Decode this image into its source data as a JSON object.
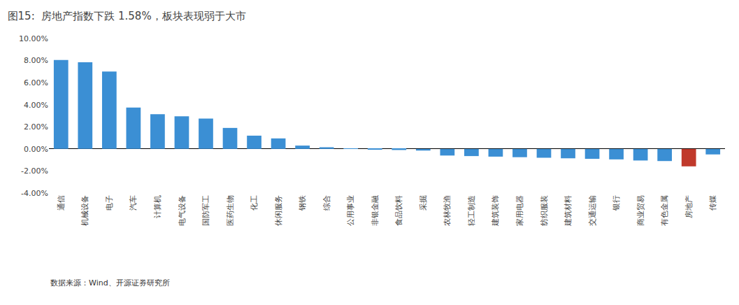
{
  "chart_data": {
    "type": "bar",
    "title": "图15:  房地产指数下跌 1.58%，板块表现弱于大市",
    "annotations": [
      "数据来源：Wind、开源证券研究所"
    ],
    "categories": [
      "通信",
      "机械设备",
      "电子",
      "汽车",
      "计算机",
      "电气设备",
      "国防军工",
      "医药生物",
      "化工",
      "休闲服务",
      "钢铁",
      "综合",
      "公用事业",
      "非银金融",
      "食品饮料",
      "采掘",
      "农林牧渔",
      "轻工制造",
      "建筑装饰",
      "家用电器",
      "纺织服装",
      "建筑材料",
      "交通运输",
      "银行",
      "商业贸易",
      "有色金属",
      "房地产",
      "传媒"
    ],
    "values": [
      8.05,
      7.85,
      7.0,
      3.75,
      3.15,
      2.95,
      2.75,
      1.9,
      1.2,
      0.95,
      0.3,
      0.15,
      0.05,
      -0.05,
      -0.1,
      -0.15,
      -0.6,
      -0.65,
      -0.7,
      -0.75,
      -0.8,
      -0.85,
      -0.9,
      -0.95,
      -1.05,
      -1.1,
      -1.58,
      -0.5
    ],
    "colors": [
      "#3B8FD4",
      "#3B8FD4",
      "#3B8FD4",
      "#3B8FD4",
      "#3B8FD4",
      "#3B8FD4",
      "#3B8FD4",
      "#3B8FD4",
      "#3B8FD4",
      "#3B8FD4",
      "#3B8FD4",
      "#3B8FD4",
      "#3B8FD4",
      "#3B8FD4",
      "#3B8FD4",
      "#3B8FD4",
      "#3B8FD4",
      "#3B8FD4",
      "#3B8FD4",
      "#3B8FD4",
      "#3B8FD4",
      "#3B8FD4",
      "#3B8FD4",
      "#3B8FD4",
      "#3B8FD4",
      "#3B8FD4",
      "#C0392B",
      "#3B8FD4"
    ],
    "ylim": [
      -4.0,
      10.0
    ],
    "yticks": [
      {
        "value": -4.0,
        "label": "-4.00%"
      },
      {
        "value": -2.0,
        "label": "-2.00%"
      },
      {
        "value": 0.0,
        "label": "0.00%"
      },
      {
        "value": 2.0,
        "label": "2.00%"
      },
      {
        "value": 4.0,
        "label": "4.00%"
      },
      {
        "value": 6.0,
        "label": "6.00%"
      },
      {
        "value": 8.0,
        "label": "8.00%"
      },
      {
        "value": 10.0,
        "label": "10.00%"
      }
    ],
    "grid": false
  }
}
